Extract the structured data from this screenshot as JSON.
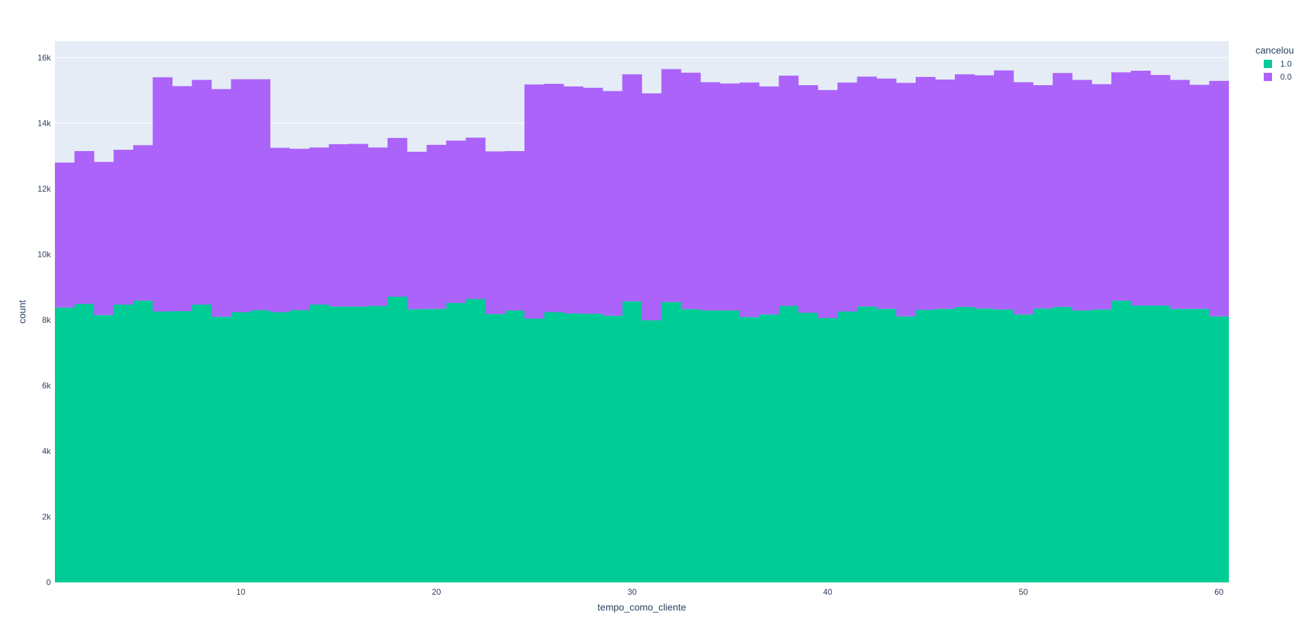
{
  "chart_data": {
    "type": "bar",
    "stacked": true,
    "bin_width": 1,
    "xlim": [
      0.5,
      60.5
    ],
    "ylim": [
      0,
      16500
    ],
    "x_tick_values": [
      10,
      20,
      30,
      40,
      50,
      60
    ],
    "x_tick_labels": [
      "10",
      "20",
      "30",
      "40",
      "50",
      "60"
    ],
    "y_tick_values": [
      0,
      2000,
      4000,
      6000,
      8000,
      10000,
      12000,
      14000,
      16000
    ],
    "y_tick_labels": [
      "0",
      "2k",
      "4k",
      "6k",
      "8k",
      "10k",
      "12k",
      "14k",
      "16k"
    ],
    "xlabel": "tempo_como_cliente",
    "ylabel": "count",
    "legend_title": "cancelou",
    "legend_position": "top-right",
    "grid": true,
    "background_color": "#e5ecf6",
    "x": [
      1,
      2,
      3,
      4,
      5,
      6,
      7,
      8,
      9,
      10,
      11,
      12,
      13,
      14,
      15,
      16,
      17,
      18,
      19,
      20,
      21,
      22,
      23,
      24,
      25,
      26,
      27,
      28,
      29,
      30,
      31,
      32,
      33,
      34,
      35,
      36,
      37,
      38,
      39,
      40,
      41,
      42,
      43,
      44,
      45,
      46,
      47,
      48,
      49,
      50,
      51,
      52,
      53,
      54,
      55,
      56,
      57,
      58,
      59,
      60
    ],
    "series": [
      {
        "name": "1.0",
        "color": "#00cc96",
        "values": [
          8380,
          8490,
          8150,
          8470,
          8590,
          8260,
          8270,
          8470,
          8100,
          8240,
          8300,
          8240,
          8300,
          8470,
          8410,
          8410,
          8430,
          8710,
          8330,
          8340,
          8520,
          8640,
          8180,
          8290,
          8040,
          8240,
          8200,
          8190,
          8130,
          8570,
          7990,
          8550,
          8330,
          8290,
          8290,
          8090,
          8170,
          8430,
          8220,
          8060,
          8260,
          8410,
          8340,
          8110,
          8310,
          8340,
          8400,
          8350,
          8320,
          8170,
          8350,
          8400,
          8290,
          8320,
          8590,
          8440,
          8440,
          8340,
          8340,
          8110
        ]
      },
      {
        "name": "0.0",
        "color": "#ab63fa",
        "values": [
          4420,
          4660,
          4670,
          4720,
          4740,
          7140,
          6860,
          6850,
          6940,
          7100,
          7040,
          5010,
          4920,
          4790,
          4950,
          4960,
          4830,
          4840,
          4800,
          5000,
          4950,
          4920,
          4960,
          4860,
          7140,
          6960,
          6920,
          6890,
          6850,
          6920,
          6920,
          7100,
          7210,
          6960,
          6920,
          7150,
          6950,
          7020,
          6940,
          6950,
          6980,
          7010,
          7020,
          7120,
          7100,
          6990,
          7090,
          7110,
          7290,
          7080,
          6810,
          7130,
          7030,
          6870,
          6960,
          7160,
          7030,
          6980,
          6830,
          7180
        ]
      }
    ]
  }
}
